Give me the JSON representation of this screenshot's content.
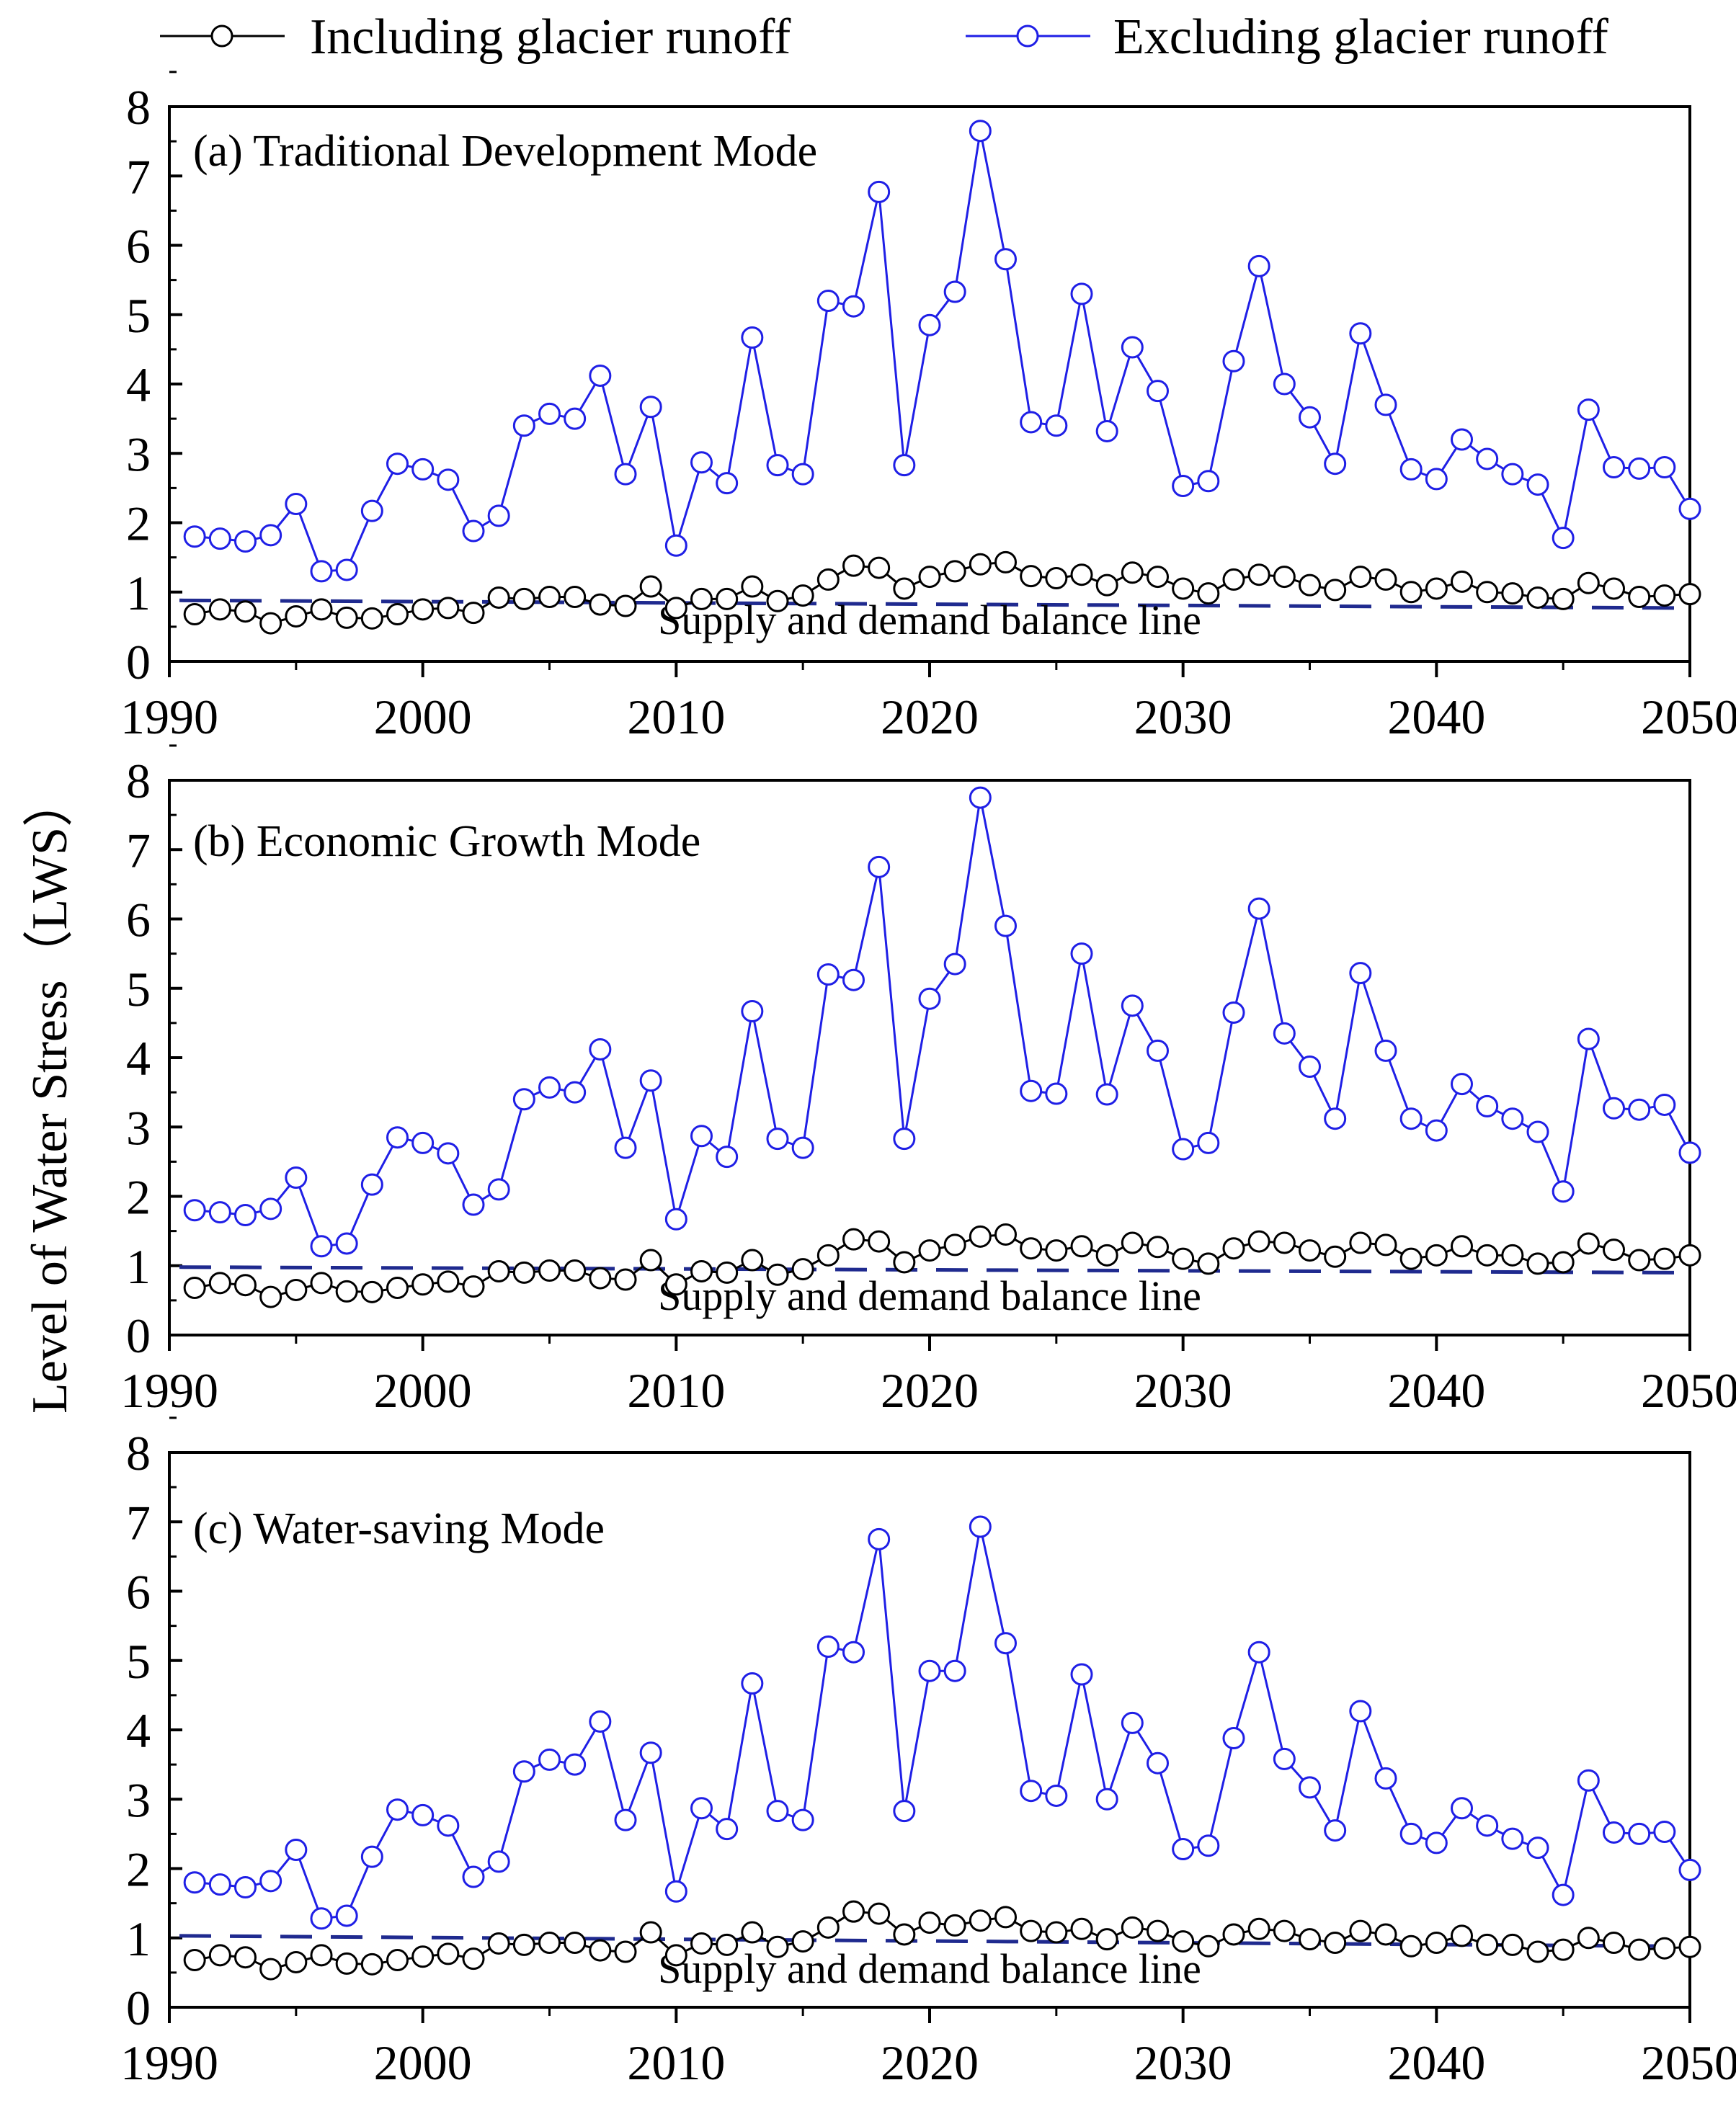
{
  "chart_data": {
    "type": "line",
    "ylabel": "Level of Water Stress（LWS）",
    "legend": {
      "position": "top",
      "entries": [
        {
          "name": "Including glacier runoff",
          "color": "#000000"
        },
        {
          "name": "Excluding glacier runoff",
          "color": "#1f1fe6"
        }
      ]
    },
    "balance_color": "#1f2a8f",
    "xlim": [
      1990,
      2050
    ],
    "ylim": [
      0,
      8
    ],
    "xticks": [
      "1990",
      "2000",
      "2010",
      "2020",
      "2030",
      "2040",
      "2050"
    ],
    "yticks": [
      "0",
      "1",
      "2",
      "3",
      "4",
      "5",
      "6",
      "7",
      "8"
    ],
    "years": [
      1991,
      1992,
      1993,
      1994,
      1995,
      1996,
      1997,
      1998,
      1999,
      2000,
      2001,
      2002,
      2003,
      2004,
      2005,
      2006,
      2007,
      2008,
      2009,
      2010,
      2011,
      2012,
      2013,
      2014,
      2015,
      2016,
      2017,
      2018,
      2019,
      2020,
      2021,
      2022,
      2023,
      2024,
      2025,
      2026,
      2027,
      2028,
      2029,
      2030,
      2031,
      2032,
      2033,
      2034,
      2035,
      2036,
      2037,
      2038,
      2039,
      2040,
      2041,
      2042,
      2043,
      2044,
      2045,
      2046,
      2047,
      2048,
      2049,
      2050
    ],
    "panels": [
      {
        "title": "(a) Traditional Development Mode",
        "balance_label": "Supply and demand balance line",
        "balance_line": [
          0.88,
          0.77
        ],
        "series": [
          {
            "name": "Including glacier runoff",
            "values": [
              0.68,
              0.75,
              0.72,
              0.55,
              0.65,
              0.75,
              0.63,
              0.62,
              0.68,
              0.75,
              0.77,
              0.7,
              0.92,
              0.9,
              0.93,
              0.93,
              0.82,
              0.8,
              1.08,
              0.77,
              0.9,
              0.9,
              1.08,
              0.87,
              0.95,
              1.18,
              1.38,
              1.35,
              1.05,
              1.22,
              1.3,
              1.4,
              1.43,
              1.23,
              1.2,
              1.25,
              1.1,
              1.28,
              1.22,
              1.05,
              0.98,
              1.18,
              1.25,
              1.22,
              1.1,
              1.03,
              1.22,
              1.18,
              1.0,
              1.05,
              1.15,
              1.0,
              0.98,
              0.92,
              0.9,
              1.13,
              1.05,
              0.93,
              0.95,
              0.97
            ]
          },
          {
            "name": "Excluding glacier runoff",
            "values": [
              1.8,
              1.77,
              1.73,
              1.82,
              2.27,
              1.3,
              1.32,
              2.17,
              2.85,
              2.77,
              2.62,
              1.88,
              2.1,
              3.4,
              3.57,
              3.5,
              4.12,
              2.7,
              3.67,
              1.67,
              2.87,
              2.57,
              4.67,
              2.83,
              2.7,
              5.2,
              5.12,
              6.77,
              2.83,
              4.85,
              5.33,
              7.65,
              5.8,
              3.45,
              3.4,
              5.3,
              3.32,
              4.53,
              3.9,
              2.53,
              2.6,
              4.33,
              5.7,
              4.0,
              3.52,
              2.85,
              4.73,
              3.7,
              2.77,
              2.63,
              3.2,
              2.92,
              2.7,
              2.55,
              1.78,
              3.63,
              2.8,
              2.78,
              2.8,
              2.2
            ]
          }
        ]
      },
      {
        "title": "(b)  Economic Growth Mode",
        "balance_label": "Supply and demand balance line",
        "balance_line": [
          0.98,
          0.9
        ],
        "series": [
          {
            "name": "Including glacier runoff",
            "values": [
              0.68,
              0.75,
              0.72,
              0.55,
              0.65,
              0.75,
              0.63,
              0.62,
              0.68,
              0.73,
              0.77,
              0.7,
              0.92,
              0.9,
              0.93,
              0.93,
              0.82,
              0.8,
              1.08,
              0.73,
              0.92,
              0.9,
              1.08,
              0.87,
              0.95,
              1.15,
              1.38,
              1.35,
              1.05,
              1.22,
              1.3,
              1.42,
              1.45,
              1.25,
              1.22,
              1.28,
              1.15,
              1.33,
              1.27,
              1.1,
              1.03,
              1.25,
              1.35,
              1.33,
              1.22,
              1.13,
              1.33,
              1.3,
              1.1,
              1.15,
              1.28,
              1.15,
              1.15,
              1.03,
              1.05,
              1.32,
              1.23,
              1.08,
              1.1,
              1.15
            ]
          },
          {
            "name": "Excluding glacier runoff",
            "values": [
              1.8,
              1.77,
              1.73,
              1.82,
              2.27,
              1.28,
              1.32,
              2.17,
              2.85,
              2.77,
              2.62,
              1.88,
              2.1,
              3.4,
              3.57,
              3.5,
              4.12,
              2.7,
              3.67,
              1.67,
              2.87,
              2.57,
              4.67,
              2.83,
              2.7,
              5.2,
              5.12,
              6.75,
              2.83,
              4.85,
              5.35,
              7.75,
              5.9,
              3.52,
              3.48,
              5.5,
              3.47,
              4.75,
              4.1,
              2.68,
              2.77,
              4.65,
              6.15,
              4.35,
              3.87,
              3.12,
              5.22,
              4.1,
              3.12,
              2.95,
              3.62,
              3.3,
              3.12,
              2.93,
              2.07,
              4.27,
              3.27,
              3.25,
              3.32,
              2.63
            ]
          }
        ]
      },
      {
        "title": "(c) Water-saving Mode",
        "balance_label": "Supply and demand balance line",
        "balance_line": [
          1.03,
          0.88
        ],
        "series": [
          {
            "name": "Including glacier runoff",
            "values": [
              0.68,
              0.75,
              0.72,
              0.55,
              0.65,
              0.75,
              0.63,
              0.62,
              0.68,
              0.73,
              0.77,
              0.7,
              0.92,
              0.9,
              0.93,
              0.93,
              0.82,
              0.8,
              1.08,
              0.75,
              0.92,
              0.9,
              1.08,
              0.87,
              0.95,
              1.15,
              1.38,
              1.35,
              1.05,
              1.22,
              1.18,
              1.25,
              1.3,
              1.1,
              1.08,
              1.13,
              0.98,
              1.15,
              1.1,
              0.95,
              0.88,
              1.05,
              1.13,
              1.1,
              0.98,
              0.93,
              1.1,
              1.05,
              0.88,
              0.93,
              1.03,
              0.9,
              0.9,
              0.8,
              0.83,
              1.0,
              0.93,
              0.83,
              0.85,
              0.87
            ]
          },
          {
            "name": "Excluding glacier runoff",
            "values": [
              1.8,
              1.77,
              1.73,
              1.82,
              2.27,
              1.28,
              1.32,
              2.17,
              2.85,
              2.77,
              2.62,
              1.88,
              2.1,
              3.4,
              3.57,
              3.5,
              4.12,
              2.7,
              3.67,
              1.67,
              2.87,
              2.57,
              4.67,
              2.83,
              2.7,
              5.2,
              5.12,
              6.75,
              2.83,
              4.85,
              4.85,
              6.93,
              5.25,
              3.12,
              3.05,
              4.8,
              3.0,
              4.1,
              3.52,
              2.28,
              2.33,
              3.88,
              5.12,
              3.58,
              3.17,
              2.55,
              4.27,
              3.3,
              2.5,
              2.37,
              2.87,
              2.62,
              2.43,
              2.3,
              1.62,
              3.27,
              2.52,
              2.5,
              2.53,
              1.98
            ]
          }
        ]
      }
    ]
  }
}
